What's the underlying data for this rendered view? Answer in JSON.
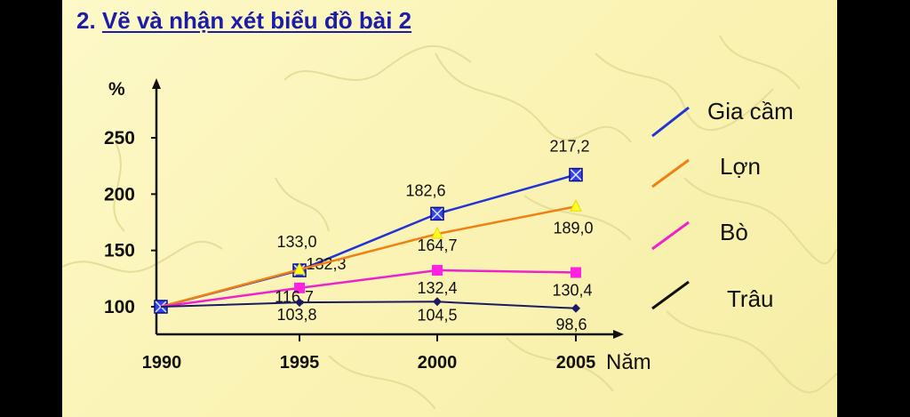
{
  "slide": {
    "title_number": "2.",
    "title_text": "Vẽ và nhận xét biểu đồ bài 2"
  },
  "colors": {
    "title": "#1c1ca8",
    "gia_cam": "#2233d6",
    "lon": "#f07f14",
    "bo": "#ee22cc",
    "trau": "#111111"
  },
  "chart_data": {
    "type": "line",
    "ylabel": "%",
    "xlabel": "Năm",
    "categories": [
      "1990",
      "1995",
      "2000",
      "2005"
    ],
    "yticks": [
      100,
      150,
      200,
      250
    ],
    "ylim": [
      85,
      285
    ],
    "series": [
      {
        "name": "Gia cầm",
        "values": [
          100,
          132.3,
          182.6,
          217.2
        ],
        "labels": [
          null,
          "132,3",
          "182,6",
          "217,2"
        ],
        "marker": "square-x",
        "color": "#2233d6"
      },
      {
        "name": "Lợn",
        "values": [
          100,
          133.0,
          164.7,
          189.0
        ],
        "labels": [
          null,
          "133,0",
          "164,7",
          "189,0"
        ],
        "marker": "triangle",
        "color": "#f07f14"
      },
      {
        "name": "Bò",
        "values": [
          100,
          116.7,
          132.4,
          130.4
        ],
        "labels": [
          null,
          "116,7",
          "132,4",
          "130,4"
        ],
        "marker": "square",
        "color": "#ee22cc"
      },
      {
        "name": "Trâu",
        "values": [
          100,
          103.8,
          104.5,
          98.6
        ],
        "labels": [
          null,
          "103,8",
          "104,5",
          "98,6"
        ],
        "marker": "diamond",
        "color": "#1a1a66"
      }
    ],
    "legend_position": "right",
    "grid": false
  }
}
